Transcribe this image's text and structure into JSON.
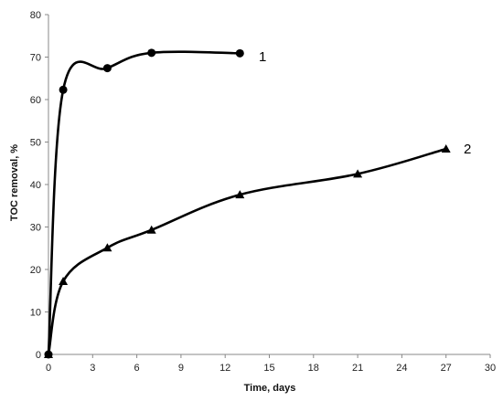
{
  "chart_data": {
    "type": "line",
    "title": "",
    "xlabel": "Time, days",
    "ylabel": "TOC removal, %",
    "xlim": [
      0,
      30
    ],
    "ylim": [
      0,
      80
    ],
    "xticks": [
      0,
      3,
      6,
      9,
      12,
      15,
      18,
      21,
      24,
      27,
      30
    ],
    "yticks": [
      0,
      10,
      20,
      30,
      40,
      50,
      60,
      70,
      80
    ],
    "grid": false,
    "legend": "none",
    "series": [
      {
        "name": "1",
        "marker": "circle",
        "color": "#000000",
        "x": [
          0,
          1,
          4,
          7,
          13
        ],
        "y": [
          0,
          62.3,
          67.4,
          71.0,
          70.9
        ]
      },
      {
        "name": "2",
        "marker": "triangle",
        "color": "#000000",
        "x": [
          0,
          1,
          4,
          7,
          13,
          21,
          27
        ],
        "y": [
          0,
          17.2,
          25.1,
          29.3,
          37.6,
          42.5,
          48.4
        ]
      }
    ]
  }
}
